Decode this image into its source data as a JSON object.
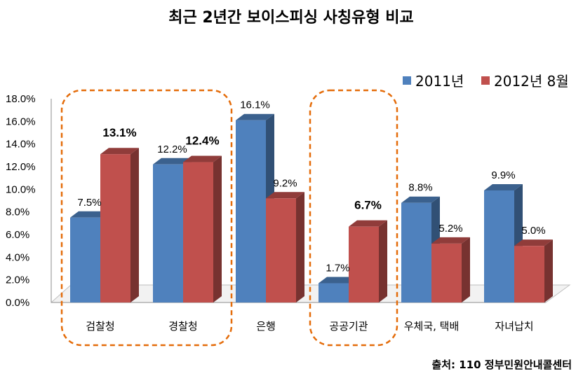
{
  "chart_data": {
    "type": "bar",
    "title": "최근 2년간 보이스피싱 사칭유형 비교",
    "categories": [
      "검찰청",
      "경찰청",
      "은행",
      "공공기관",
      "우체국, 택배",
      "자녀납치"
    ],
    "series": [
      {
        "name": "2011년",
        "values": [
          7.5,
          12.2,
          16.1,
          1.7,
          8.8,
          9.9
        ],
        "color": "#4F81BD"
      },
      {
        "name": "2012년 8월",
        "values": [
          13.1,
          12.4,
          9.2,
          6.7,
          5.2,
          5.0
        ],
        "color": "#C0504D"
      }
    ],
    "value_labels": [
      [
        "7.5%",
        "12.2%",
        "16.1%",
        "1.7%",
        "8.8%",
        "9.9%"
      ],
      [
        "13.1%",
        "12.4%",
        "9.2%",
        "6.7%",
        "5.2%",
        "5.0%"
      ]
    ],
    "bold_labels": [
      [
        false,
        false,
        false,
        false,
        false,
        false
      ],
      [
        true,
        true,
        false,
        true,
        false,
        false
      ]
    ],
    "yticks": [
      "0.0%",
      "2.0%",
      "4.0%",
      "6.0%",
      "8.0%",
      "10.0%",
      "12.0%",
      "14.0%",
      "16.0%",
      "18.0%"
    ],
    "ylim": [
      0,
      18
    ],
    "grid": false,
    "legend_position": "top-right",
    "highlighted_categories": [
      "검찰청",
      "경찰청",
      "공공기관"
    ],
    "highlight_color": "#E46C0A"
  },
  "source": "출처: 110 정부민원안내콜센터"
}
